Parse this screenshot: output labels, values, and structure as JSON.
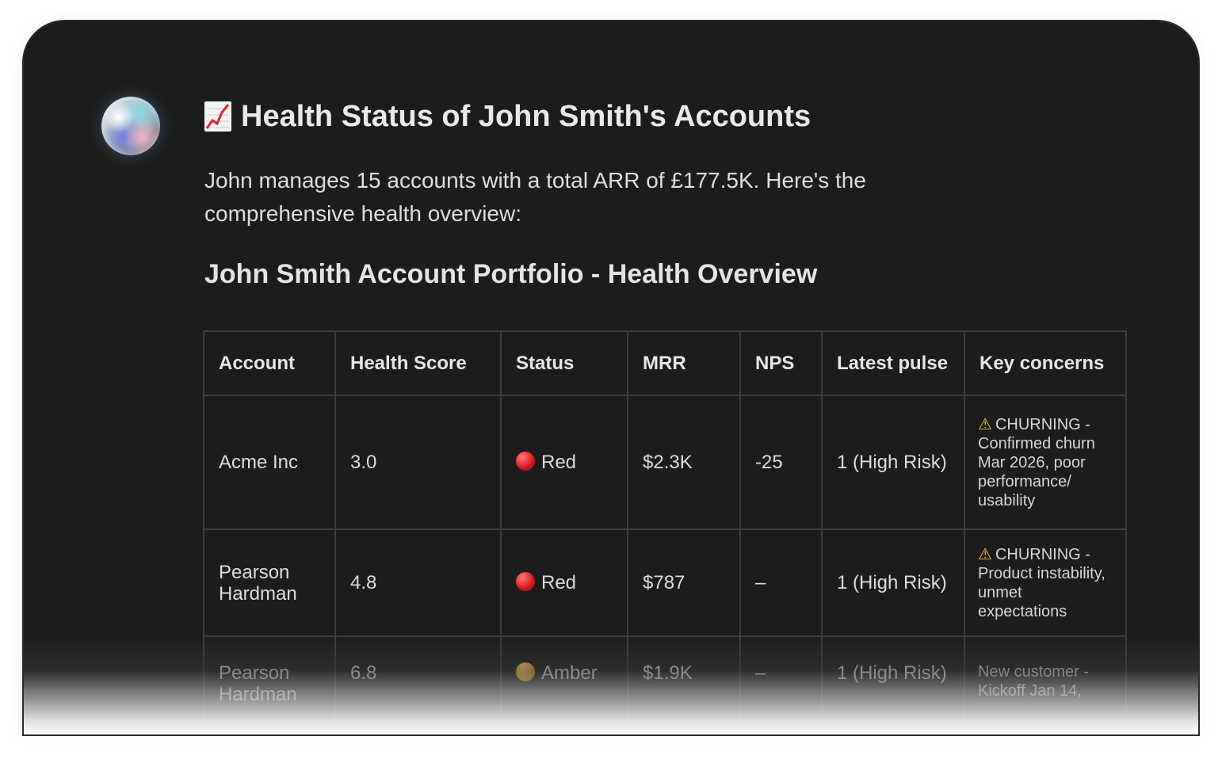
{
  "message": {
    "title": "Health Status of John Smith's Accounts",
    "title_icon": "chart-increasing-icon",
    "intro": "John manages 15 accounts with a total ARR of £177.5K. Here's the comprehensive health overview:",
    "section_title": "John Smith Account Portfolio - Health Overview"
  },
  "table": {
    "headers": [
      "Account",
      "Health Score",
      "Status",
      "MRR",
      "NPS",
      "Latest pulse",
      "Key concerns"
    ],
    "rows": [
      {
        "account": "Acme Inc",
        "health_score": "3.0",
        "status": "Red",
        "status_color": "#e0242b",
        "mrr": "$2.3K",
        "nps": "-25",
        "pulse": "1 (High Risk)",
        "concern_flag": "CHURNING -",
        "concern_text": "Confirmed churn Mar 2026, poor performance/ usability"
      },
      {
        "account": "Pearson Hardman",
        "health_score": "4.8",
        "status": "Red",
        "status_color": "#e0242b",
        "mrr": "$787",
        "nps": "–",
        "pulse": "1 (High Risk)",
        "concern_flag": "CHURNING -",
        "concern_text": "Product instability, unmet expectations"
      },
      {
        "account": "Pearson Hardman",
        "health_score": "6.8",
        "status": "Amber",
        "status_color": "#e8a21a",
        "mrr": "$1.9K",
        "nps": "–",
        "pulse": "1 (High Risk)",
        "concern_text": "New customer - Kickoff Jan 14,"
      }
    ]
  },
  "colors": {
    "background": "#1c1c1c",
    "text": "#dcdcdc",
    "border": "#3d3d3d",
    "warning": "#f2c230"
  }
}
